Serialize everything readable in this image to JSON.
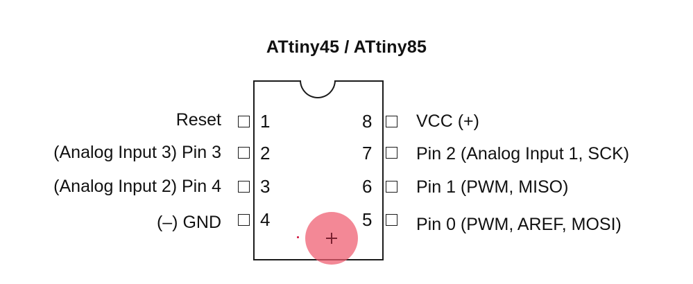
{
  "diagram": {
    "title": "ATtiny45 / ATtiny85",
    "left_pins": [
      {
        "number": "1",
        "label": "Reset"
      },
      {
        "number": "2",
        "label": "(Analog Input 3) Pin 3"
      },
      {
        "number": "3",
        "label": "(Analog Input 2) Pin 4"
      },
      {
        "number": "4",
        "label": "(–) GND"
      }
    ],
    "right_pins": [
      {
        "number": "8",
        "label": "VCC (+)"
      },
      {
        "number": "7",
        "label": "Pin 2 (Analog Input 1, SCK)"
      },
      {
        "number": "6",
        "label": "Pin 1 (PWM, MISO)"
      },
      {
        "number": "5",
        "label": "Pin 0 (PWM, AREF, MOSI)"
      }
    ]
  },
  "colors": {
    "outline": "#1a1a1a",
    "cursor_highlight": "#ef5a6e",
    "text": "#111111"
  }
}
